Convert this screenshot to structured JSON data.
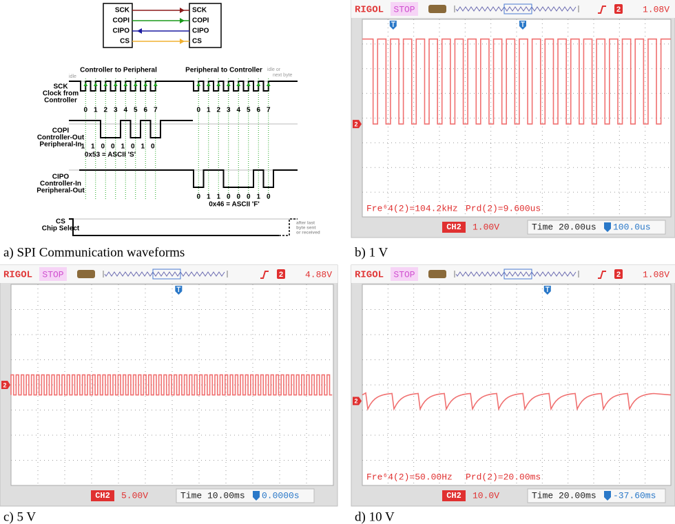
{
  "spi": {
    "caption": "a) SPI Communication waveforms",
    "pins": [
      "SCK",
      "COPI",
      "CIPO",
      "CS"
    ],
    "headings": {
      "c2p": "Controller to Peripheral",
      "p2c": "Peripheral to Controller",
      "idle": "idle",
      "idle_next": [
        "idle or",
        "next byte"
      ]
    },
    "signals": [
      {
        "name": "SCK",
        "desc": [
          "Clock from",
          "Controller"
        ]
      },
      {
        "name": "COPI",
        "desc": [
          "Controller-Out",
          "Peripheral-In"
        ]
      },
      {
        "name": "CIPO",
        "desc": [
          "Controller-In",
          "Peripheral-Out"
        ]
      },
      {
        "name": "CS",
        "desc": [
          "Chip Select"
        ]
      }
    ],
    "bit_indices": [
      "0",
      "1",
      "2",
      "3",
      "4",
      "5",
      "6",
      "7"
    ],
    "copi_bits": [
      "1",
      "1",
      "0",
      "0",
      "1",
      "0",
      "1",
      "0"
    ],
    "copi_note": "0x53 = ASCII 'S'",
    "cipo_bits": [
      "0",
      "1",
      "1",
      "0",
      "0",
      "0",
      "1",
      "0"
    ],
    "cipo_note": "0x46 = ASCII 'F'",
    "cs_note": [
      "after last",
      "byte sent",
      "or received"
    ]
  },
  "scopes": [
    {
      "caption": "b) 1 V",
      "brand": "RIGOL",
      "state": "STOP",
      "channel": "2",
      "trigger_level": "1.08V",
      "measurements": [
        "Fre⁶4(2)=104.2kHz",
        "Prd(2)=9.600us"
      ],
      "ch_label": "CH2",
      "volts": "1.00V",
      "time": "Time 20.00us",
      "offset": "100.0us"
    },
    {
      "caption": "c) 5 V",
      "brand": "RIGOL",
      "state": "STOP",
      "channel": "2",
      "trigger_level": "4.88V",
      "measurements": [],
      "ch_label": "CH2",
      "volts": "5.00V",
      "time": "Time 10.00ms",
      "offset": "0.0000s"
    },
    {
      "caption": "d) 10 V",
      "brand": "RIGOL",
      "state": "STOP",
      "channel": "2",
      "trigger_level": "1.08V",
      "measurements": [
        "Fre⁶4(2)=50.00Hz",
        "Prd(2)=20.00ms"
      ],
      "ch_label": "CH2",
      "volts": "10.0V",
      "time": "Time 20.00ms",
      "offset": "-37.60ms"
    }
  ]
}
